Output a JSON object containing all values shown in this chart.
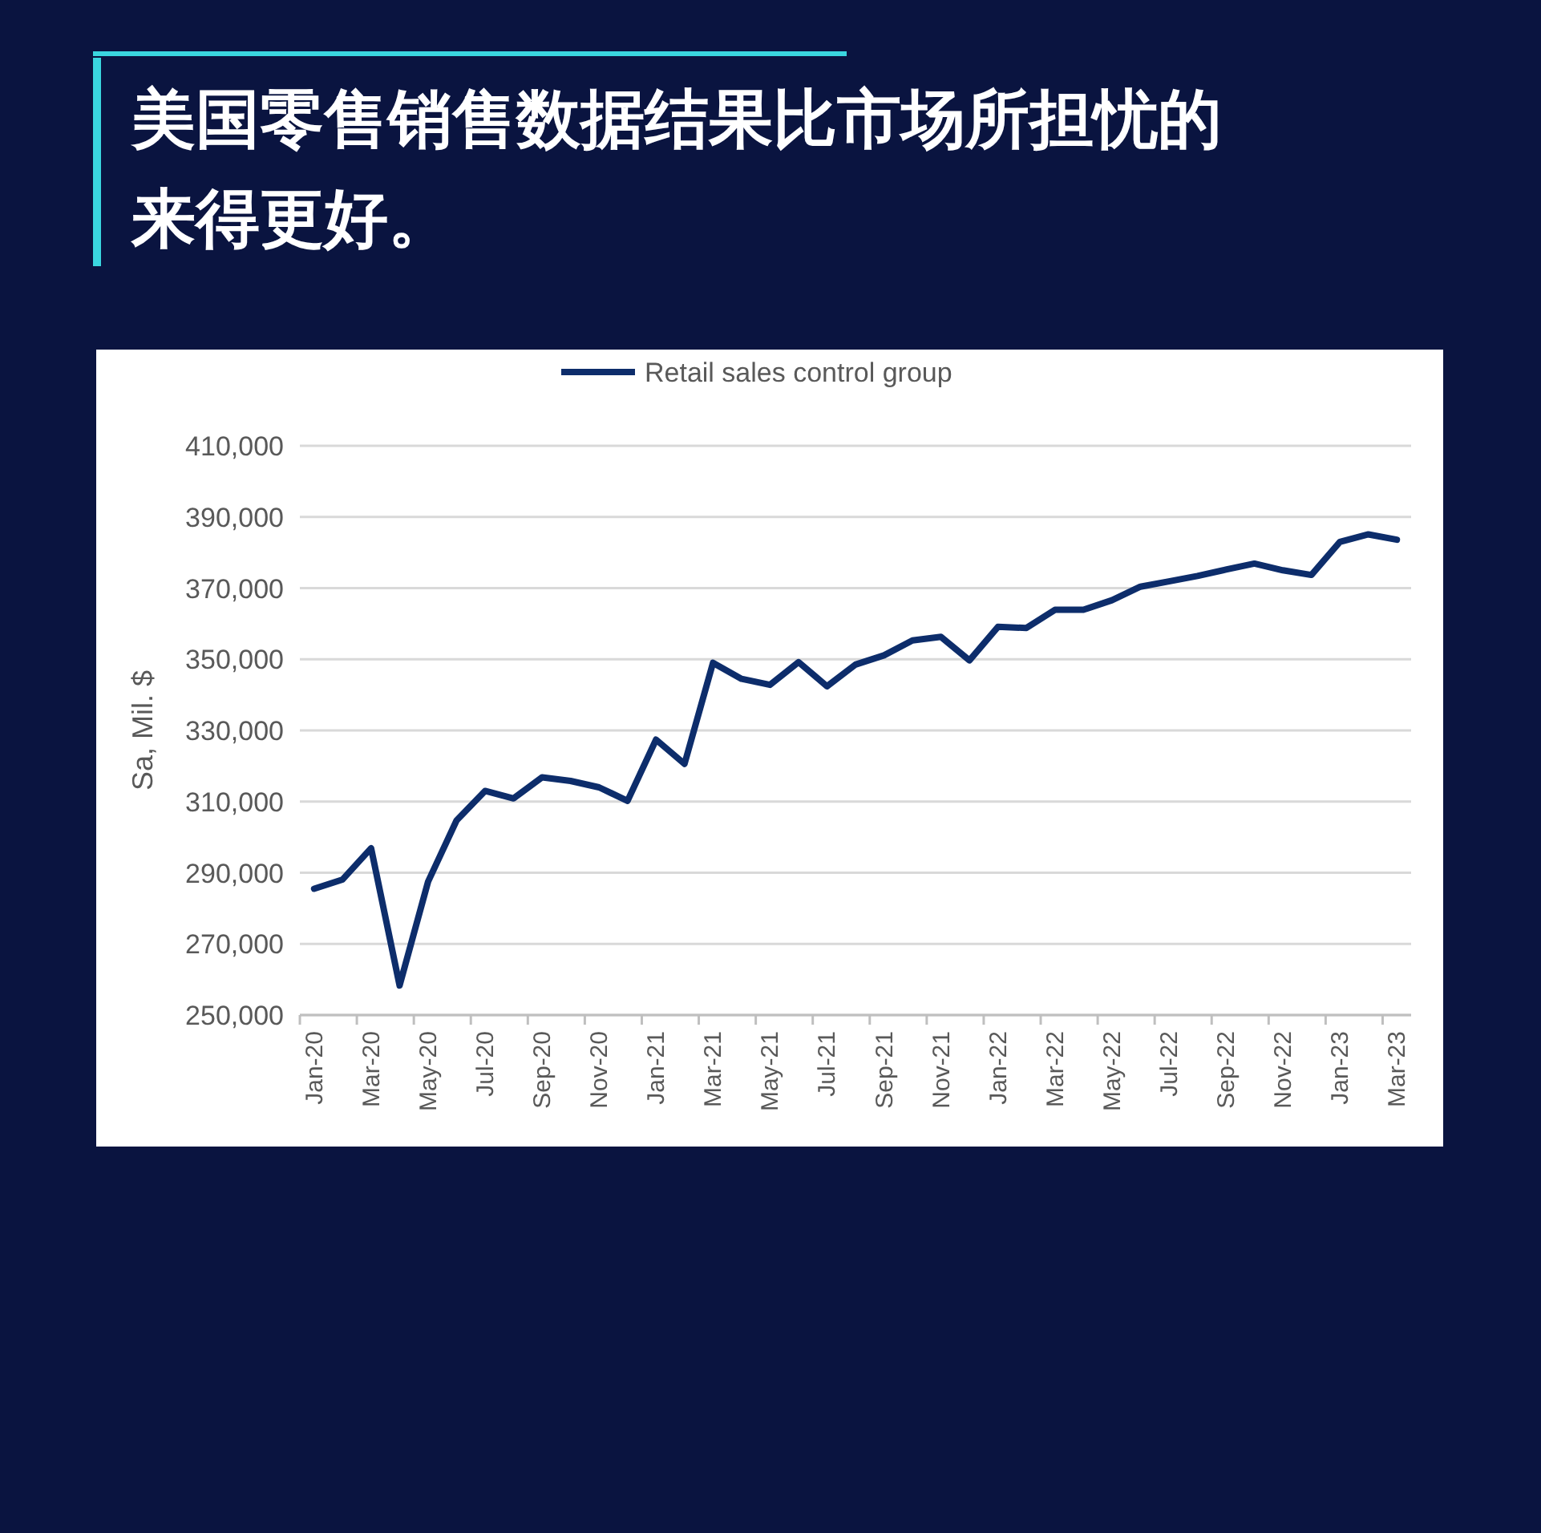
{
  "chart_data": {
    "type": "line",
    "title": "美国零售销售数据结果比市场所担忧的来得更好。",
    "ylabel": "Sa, Mil. $",
    "categories": [
      "Jan-20",
      null,
      "Mar-20",
      null,
      "May-20",
      null,
      "Jul-20",
      null,
      "Sep-20",
      null,
      "Nov-20",
      null,
      "Jan-21",
      null,
      "Mar-21",
      null,
      "May-21",
      null,
      "Jul-21",
      null,
      "Sep-21",
      null,
      "Nov-21",
      null,
      "Jan-22",
      null,
      "Mar-22",
      null,
      "May-22",
      null,
      "Jul-22",
      null,
      "Sep-22",
      null,
      "Nov-22",
      null,
      "Jan-23",
      null,
      "Mar-23"
    ],
    "series": [
      {
        "name": "Retail sales control group",
        "color": "#0d2d6b",
        "values": [
          285500,
          288100,
          296900,
          258300,
          287500,
          304700,
          313000,
          310900,
          316800,
          315800,
          314000,
          310200,
          327400,
          320600,
          349000,
          344500,
          342800,
          349200,
          342400,
          348500,
          351100,
          355300,
          356300,
          349700,
          359100,
          358800,
          363900,
          363900,
          366600,
          370400,
          371900,
          373400,
          375200,
          376900,
          375000,
          373700,
          383000,
          385100,
          383600
        ]
      }
    ],
    "ylim": [
      250000,
      410000
    ],
    "yticks": [
      {
        "value": 250000,
        "label": "250,000"
      },
      {
        "value": 270000,
        "label": "270,000"
      },
      {
        "value": 290000,
        "label": "290,000"
      },
      {
        "value": 310000,
        "label": "310,000"
      },
      {
        "value": 330000,
        "label": "330,000"
      },
      {
        "value": 350000,
        "label": "350,000"
      },
      {
        "value": 370000,
        "label": "370,000"
      },
      {
        "value": 390000,
        "label": "390,000"
      },
      {
        "value": 410000,
        "label": "410,000"
      }
    ],
    "grid": "y",
    "legend": "top",
    "marker": "none",
    "line_style": "solid"
  }
}
